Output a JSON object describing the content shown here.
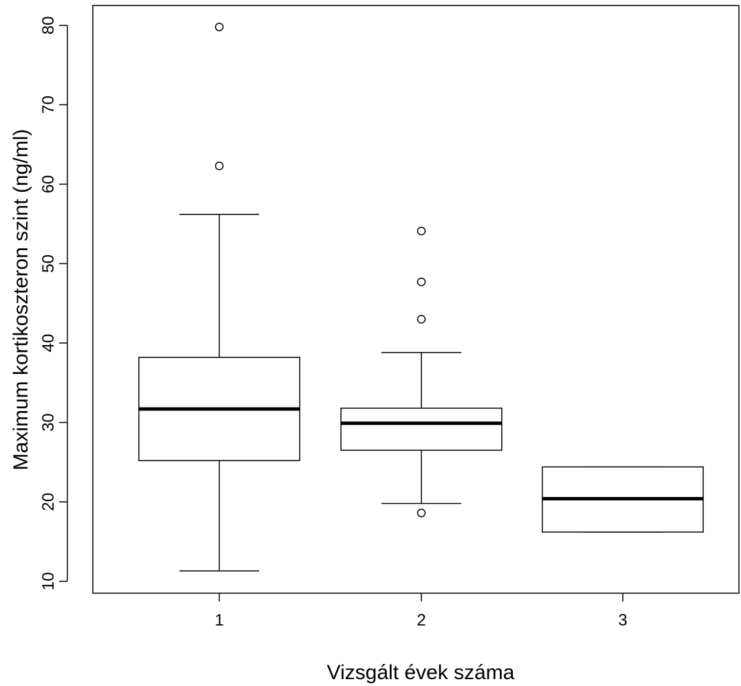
{
  "chart_data": {
    "type": "boxplot",
    "title": "",
    "xlabel": "Vizsgált évek száma",
    "ylabel": "Maximum kortikoszteron szint (ng/ml)",
    "categories": [
      "1",
      "2",
      "3"
    ],
    "yticks": [
      "10",
      "20",
      "30",
      "40",
      "50",
      "60",
      "70",
      "80"
    ],
    "ylim": [
      8.5,
      82.5
    ],
    "grid": false,
    "boxes": [
      {
        "category": "1",
        "whisker_low": 11.3,
        "q1": 25.2,
        "median": 31.7,
        "q3": 38.2,
        "whisker_high": 56.2,
        "outliers": [
          62.3,
          79.8
        ]
      },
      {
        "category": "2",
        "whisker_low": 19.8,
        "q1": 26.5,
        "median": 29.9,
        "q3": 31.8,
        "whisker_high": 38.8,
        "outliers": [
          18.6,
          43.0,
          47.7,
          54.1
        ]
      },
      {
        "category": "3",
        "whisker_low": 16.2,
        "q1": 16.2,
        "median": 20.4,
        "q3": 24.4,
        "whisker_high": 24.4,
        "outliers": []
      }
    ]
  }
}
